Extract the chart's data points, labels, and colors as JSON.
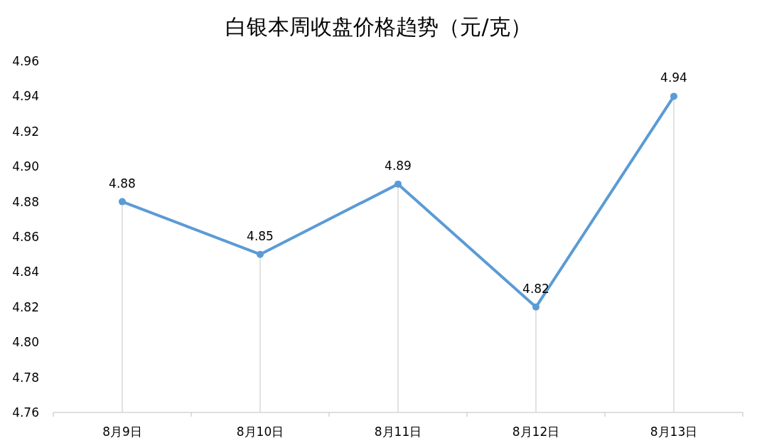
{
  "chart_data": {
    "type": "line",
    "title": "白银本周收盘价格趋势（元/克）",
    "categories": [
      "8月9日",
      "8月10日",
      "8月11日",
      "8月12日",
      "8月13日"
    ],
    "series": [
      {
        "color": "#5b9bd5",
        "values": [
          4.88,
          4.85,
          4.89,
          4.82,
          4.94
        ]
      }
    ],
    "ylim": [
      4.76,
      4.96
    ],
    "yticks": [
      {
        "value": 4.76,
        "label": "4.76"
      },
      {
        "value": 4.78,
        "label": "4.78"
      },
      {
        "value": 4.8,
        "label": "4.80"
      },
      {
        "value": 4.82,
        "label": "4.82"
      },
      {
        "value": 4.84,
        "label": "4.84"
      },
      {
        "value": 4.86,
        "label": "4.86"
      },
      {
        "value": 4.88,
        "label": "4.88"
      },
      {
        "value": 4.9,
        "label": "4.90"
      },
      {
        "value": 4.92,
        "label": "4.92"
      },
      {
        "value": 4.94,
        "label": "4.94"
      },
      {
        "value": 4.96,
        "label": "4.96"
      }
    ],
    "value_labels": [
      "4.88",
      "4.85",
      "4.89",
      "4.82",
      "4.94"
    ],
    "marker": "circle",
    "grid": "x"
  }
}
